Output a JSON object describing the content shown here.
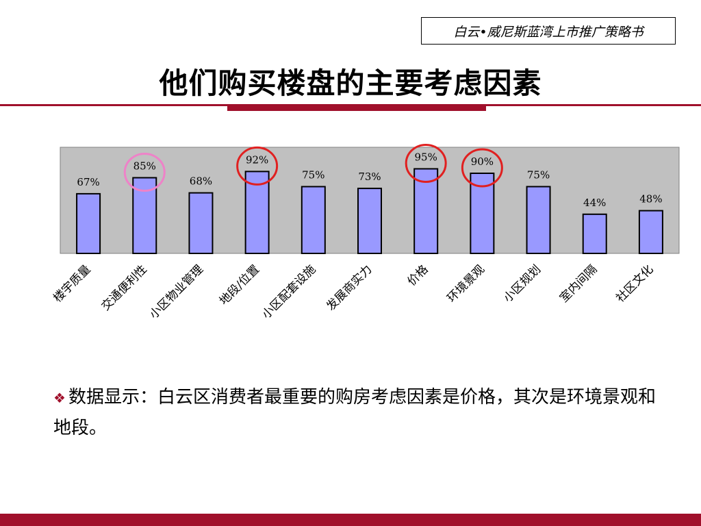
{
  "header": {
    "tag": "白云•威尼斯蓝湾上市推广策略书"
  },
  "slide": {
    "title": "他们购买楼盘的主要考虑因素"
  },
  "chart_data": {
    "type": "bar",
    "categories": [
      "楼宇质量",
      "交通便利性",
      "小区物业管理",
      "地段/位置",
      "小区配套设施",
      "发展商实力",
      "价格",
      "环境景观",
      "小区规划",
      "室内间隔",
      "社区文化"
    ],
    "values": [
      67,
      85,
      68,
      92,
      75,
      73,
      95,
      90,
      75,
      44,
      48
    ],
    "data_labels": [
      "67%",
      "85%",
      "68%",
      "92%",
      "75%",
      "73%",
      "95%",
      "90%",
      "75%",
      "44%",
      "48%"
    ],
    "ylim": [
      0,
      100
    ],
    "grid": false,
    "legend": "none",
    "bar_color": "#9999ff",
    "plot_background": "#c0c0c0",
    "highlighted_categories": [
      {
        "category": "交通便利性",
        "color": "#ee82c8"
      },
      {
        "category": "地段/位置",
        "color": "#e02020"
      },
      {
        "category": "价格",
        "color": "#e02020"
      },
      {
        "category": "环境景观",
        "color": "#e02020"
      }
    ]
  },
  "summary": {
    "bullet": "❖",
    "text": "数据显示：白云区消费者最重要的购房考虑因素是价格，其次是环境景观和地段。"
  },
  "colors": {
    "accent": "#a0102b"
  }
}
